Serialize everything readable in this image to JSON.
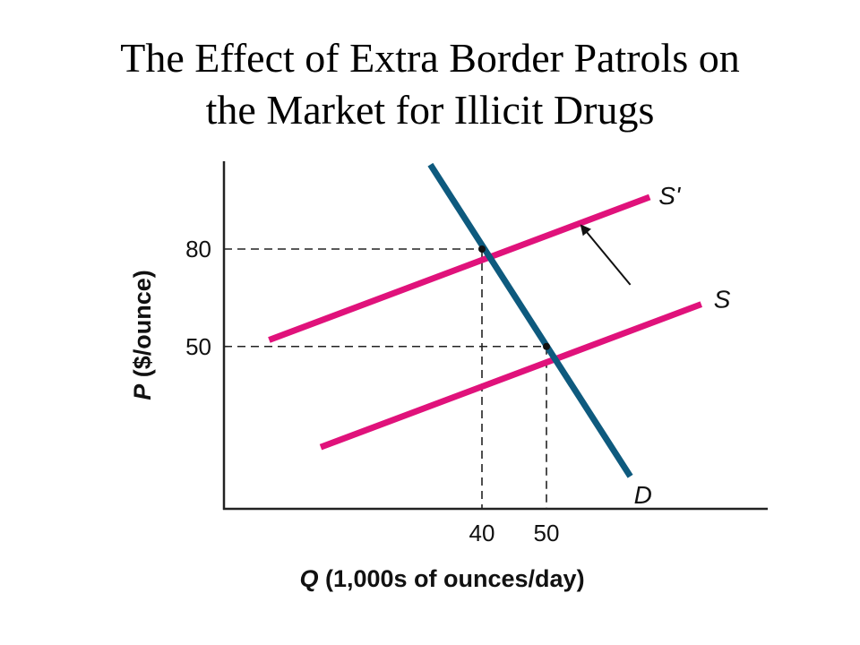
{
  "title": {
    "line1": "The Effect of Extra Border Patrols on",
    "line2": "the Market for Illicit Drugs"
  },
  "colors": {
    "supply": "#e0127b",
    "demand": "#0e5a7e",
    "axis": "#222222",
    "guide": "#222222"
  },
  "chart_data": {
    "type": "line",
    "title": "The Effect of Extra Border Patrols on the Market for Illicit Drugs",
    "xlabel": "Q (1,000s of ounces/day)",
    "xlabel_var": "Q",
    "xlabel_rest": " (1,000s of ounces/day)",
    "ylabel": "P ($/ounce)",
    "ylabel_var": "P",
    "ylabel_rest": " ($/ounce)",
    "xlim": [
      0,
      85
    ],
    "ylim": [
      0,
      110
    ],
    "x_ticks": [
      40,
      50
    ],
    "y_ticks": [
      50,
      80
    ],
    "grid": false,
    "series": [
      {
        "name": "S'",
        "role": "supply",
        "x": [
          7,
          66
        ],
        "y": [
          52,
          96
        ]
      },
      {
        "name": "S",
        "role": "supply",
        "x": [
          15,
          74
        ],
        "y": [
          19,
          63
        ]
      },
      {
        "name": "D",
        "role": "demand",
        "x": [
          32,
          63
        ],
        "y": [
          106,
          10
        ]
      }
    ],
    "equilibria": [
      {
        "x": 40,
        "y": 80
      },
      {
        "x": 50,
        "y": 50
      }
    ],
    "annotations": [
      {
        "type": "arrow",
        "description": "supply shifts from S to S'",
        "from": [
          63,
          69
        ],
        "to": [
          55.5,
          87
        ]
      }
    ]
  }
}
